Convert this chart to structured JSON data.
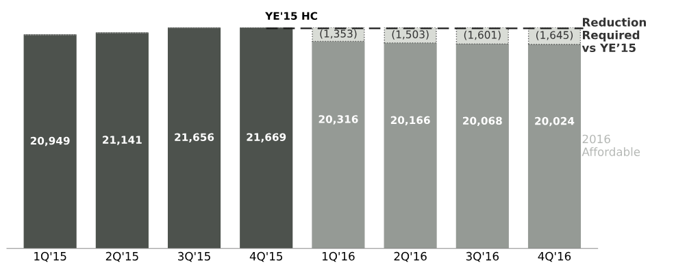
{
  "chart_data": {
    "type": "bar",
    "stacked": true,
    "categories": [
      "1Q'15",
      "2Q'15",
      "3Q'15",
      "4Q'15",
      "1Q'16",
      "2Q'16",
      "3Q'16",
      "4Q'16"
    ],
    "series": [
      {
        "color": "#4d524d",
        "values": [
          20949,
          21141,
          21656,
          21669,
          null,
          null,
          null,
          null
        ],
        "value_labels": [
          "20,949",
          "21,141",
          "21,656",
          "21,669",
          null,
          null,
          null,
          null
        ]
      },
      {
        "name": "2016\nAffordable",
        "color": "#959a95",
        "values": [
          null,
          null,
          null,
          null,
          20316,
          20166,
          20068,
          20024
        ],
        "value_labels": [
          null,
          null,
          null,
          null,
          "20,316",
          "20,166",
          "20,068",
          "20,024"
        ]
      },
      {
        "name": "Reduction\nRequired\nvs YE’15",
        "color": "#d9dcd6",
        "values": [
          null,
          null,
          null,
          null,
          1353,
          1503,
          1601,
          1645
        ],
        "value_labels": [
          null,
          null,
          null,
          null,
          "(1,353)",
          "(1,503)",
          "(1,601)",
          "(1,645)"
        ]
      }
    ],
    "tick_labels": "x",
    "grid": false,
    "legend": false,
    "ref_lines": [
      {
        "axis": "y",
        "value": 21669,
        "label": "YE'15 HC",
        "color": "#1a1a1a",
        "line_style": "dashed"
      }
    ]
  }
}
